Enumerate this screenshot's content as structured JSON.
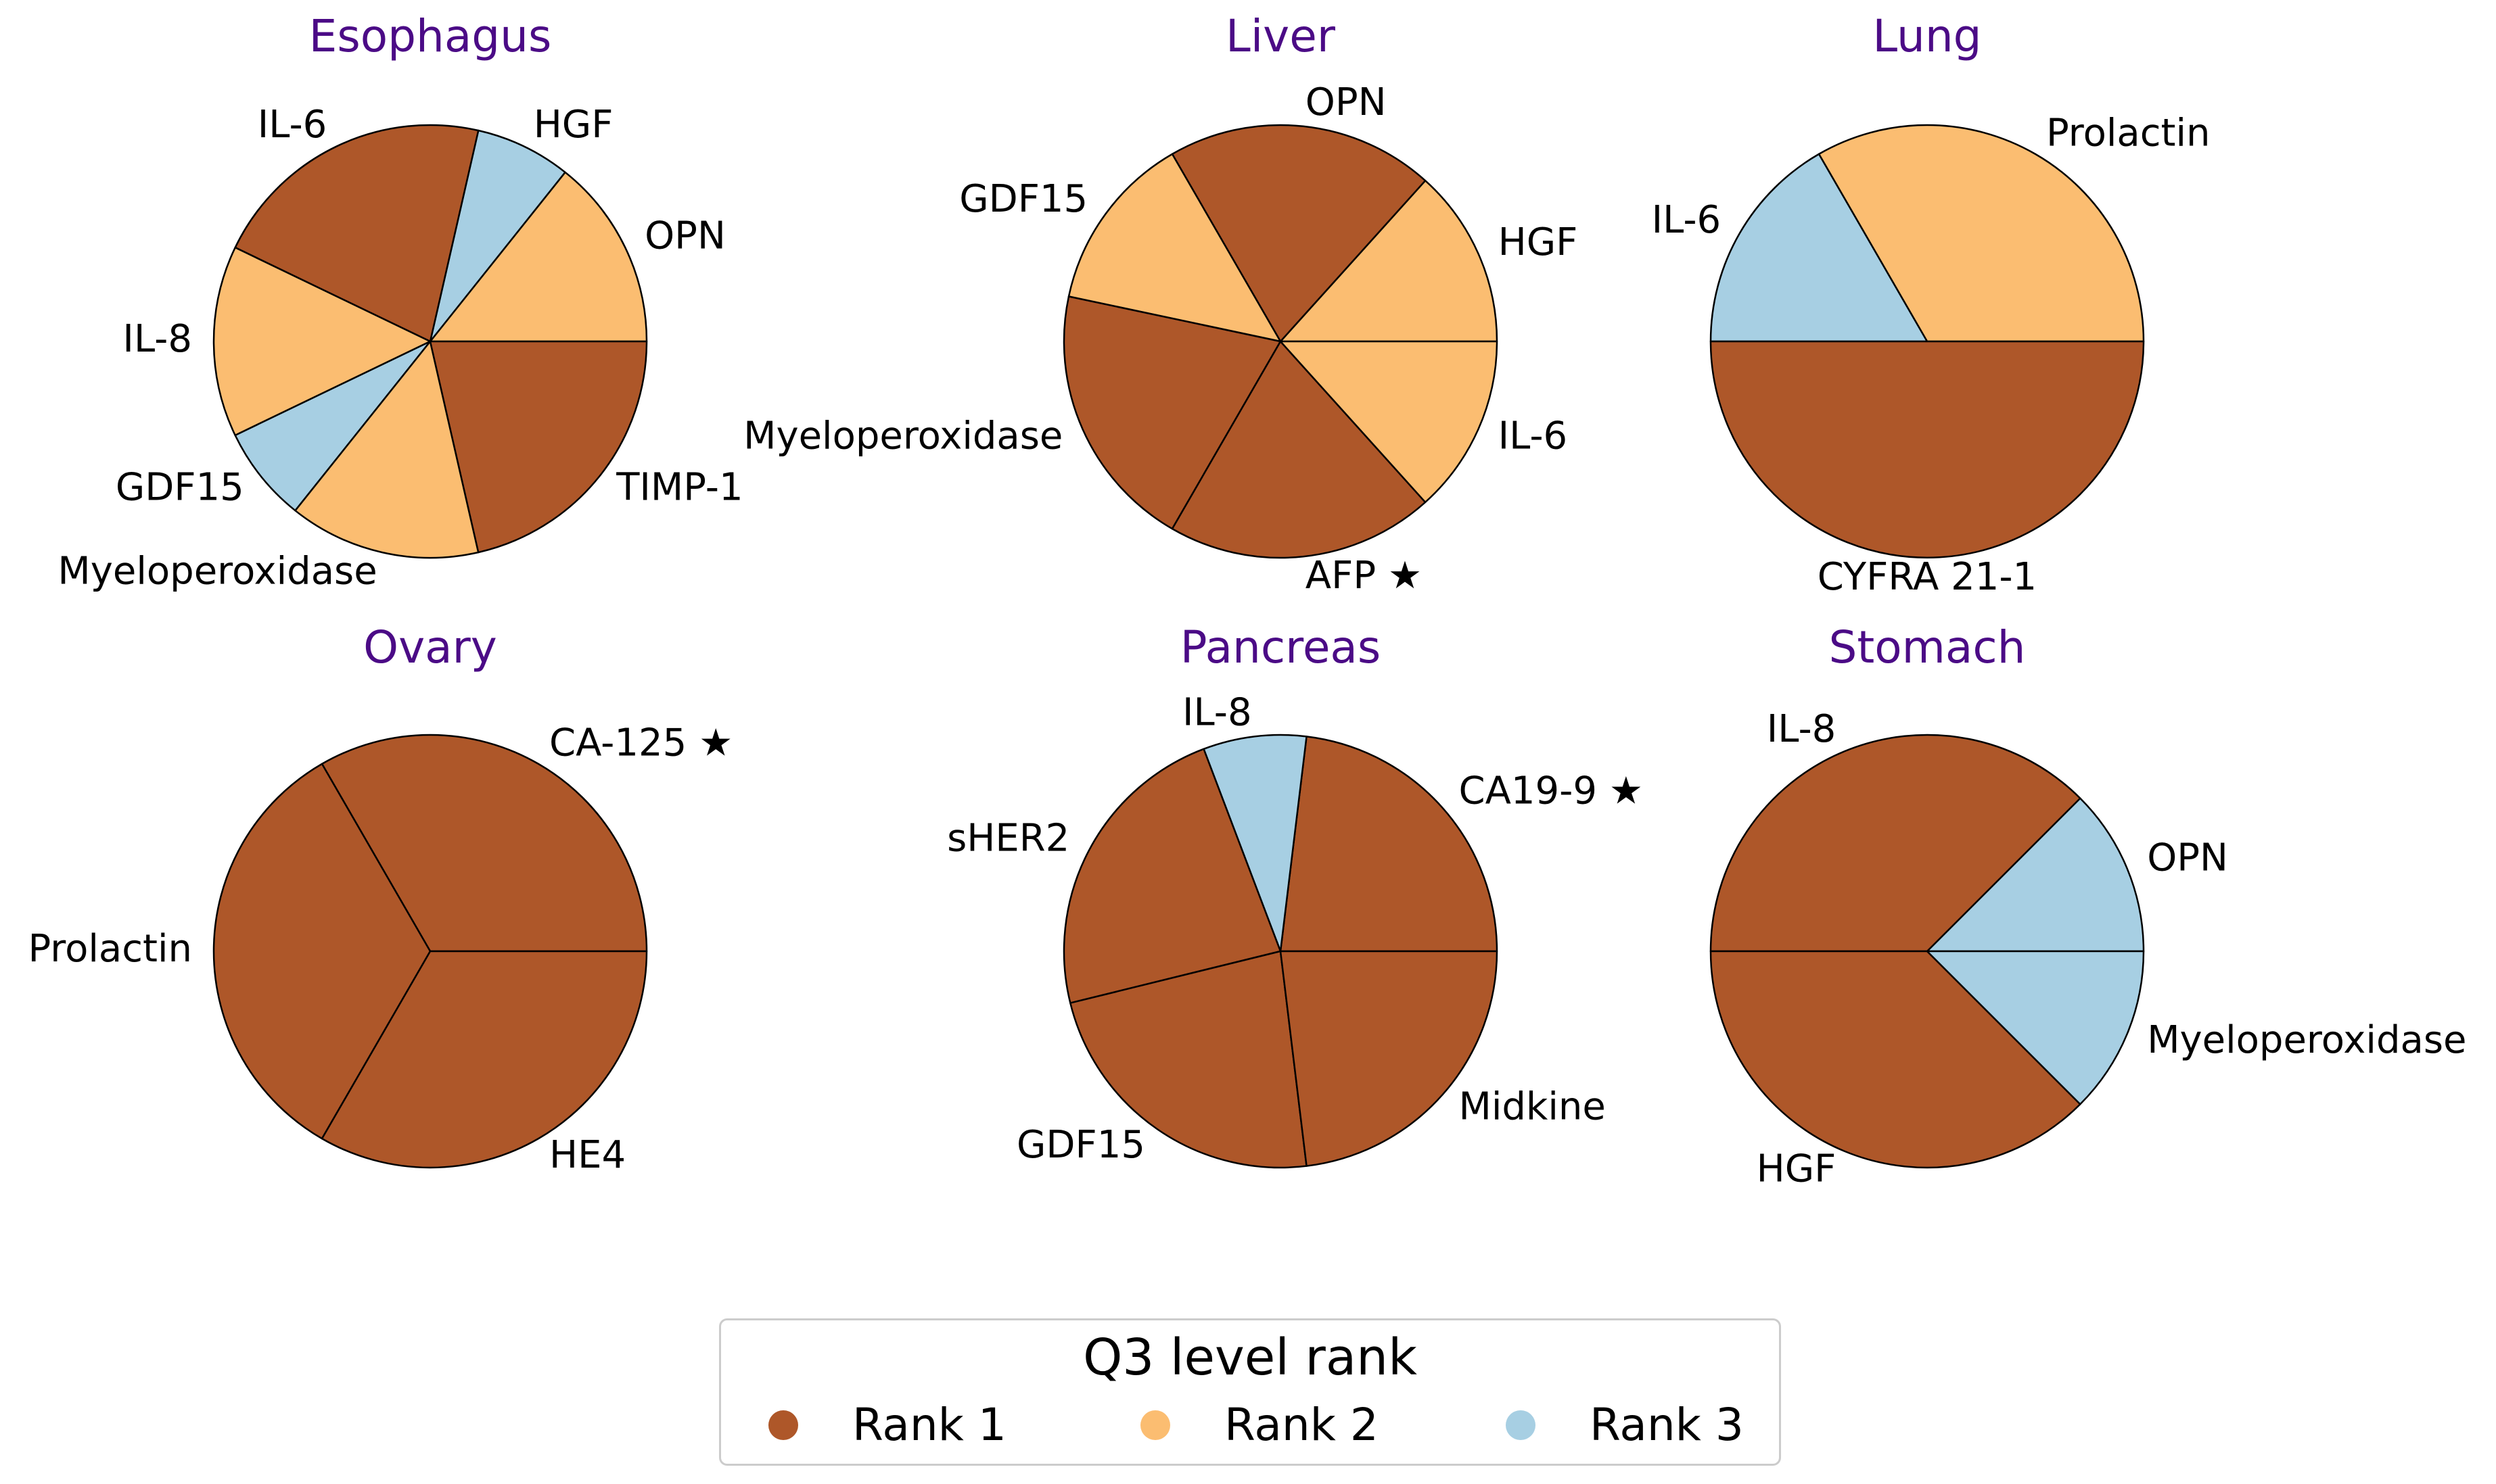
{
  "colors": {
    "rank_1": "#ae5729",
    "rank_2": "#fbbd71",
    "rank_3": "#a7cfe3",
    "title": "#4b0b86",
    "edge": "#000000"
  },
  "chart_data": [
    {
      "type": "pie",
      "title": "Esophagus",
      "slices": [
        {
          "label": "OPN",
          "value": 1,
          "rank": 2
        },
        {
          "label": "HGF",
          "value": 0.5,
          "rank": 3
        },
        {
          "label": "IL-6",
          "value": 1.5,
          "rank": 1
        },
        {
          "label": "IL-8",
          "value": 1,
          "rank": 2
        },
        {
          "label": "GDF15",
          "value": 0.5,
          "rank": 3
        },
        {
          "label": "Myeloperoxidase",
          "value": 1,
          "rank": 2
        },
        {
          "label": "TIMP-1",
          "value": 1.5,
          "rank": 1
        }
      ]
    },
    {
      "type": "pie",
      "title": "Liver",
      "slices": [
        {
          "label": "HGF",
          "value": 1,
          "rank": 2
        },
        {
          "label": "OPN",
          "value": 1.5,
          "rank": 1
        },
        {
          "label": "GDF15",
          "value": 1,
          "rank": 2
        },
        {
          "label": "Myeloperoxidase",
          "value": 1.5,
          "rank": 1
        },
        {
          "label": "AFP ★",
          "value": 1.5,
          "rank": 1
        },
        {
          "label": "IL-6",
          "value": 1,
          "rank": 2
        }
      ]
    },
    {
      "type": "pie",
      "title": "Lung",
      "slices": [
        {
          "label": "Prolactin",
          "value": 1,
          "rank": 2
        },
        {
          "label": "IL-6",
          "value": 0.5,
          "rank": 3
        },
        {
          "label": "CYFRA 21-1",
          "value": 1.5,
          "rank": 1
        }
      ]
    },
    {
      "type": "pie",
      "title": "Ovary",
      "slices": [
        {
          "label": "CA-125 ★",
          "value": 1,
          "rank": 1
        },
        {
          "label": "Prolactin",
          "value": 1,
          "rank": 1
        },
        {
          "label": "HE4",
          "value": 1,
          "rank": 1
        }
      ]
    },
    {
      "type": "pie",
      "title": "Pancreas",
      "slices": [
        {
          "label": "CA19-9 ★",
          "value": 1.5,
          "rank": 1
        },
        {
          "label": "IL-8",
          "value": 0.5,
          "rank": 3
        },
        {
          "label": "sHER2",
          "value": 1.5,
          "rank": 1
        },
        {
          "label": "GDF15",
          "value": 1.5,
          "rank": 1
        },
        {
          "label": "Midkine",
          "value": 1.5,
          "rank": 1
        }
      ]
    },
    {
      "type": "pie",
      "title": "Stomach",
      "slices": [
        {
          "label": "OPN",
          "value": 1,
          "rank": 3
        },
        {
          "label": "IL-8",
          "value": 3,
          "rank": 1
        },
        {
          "label": "HGF",
          "value": 3,
          "rank": 1
        },
        {
          "label": "Myeloperoxidase",
          "value": 1,
          "rank": 3
        }
      ]
    }
  ],
  "legend": {
    "title": "Q3 level rank",
    "entries": [
      {
        "label": "Rank 1",
        "rank": 1
      },
      {
        "label": "Rank 2",
        "rank": 2
      },
      {
        "label": "Rank 3",
        "rank": 3
      }
    ]
  }
}
